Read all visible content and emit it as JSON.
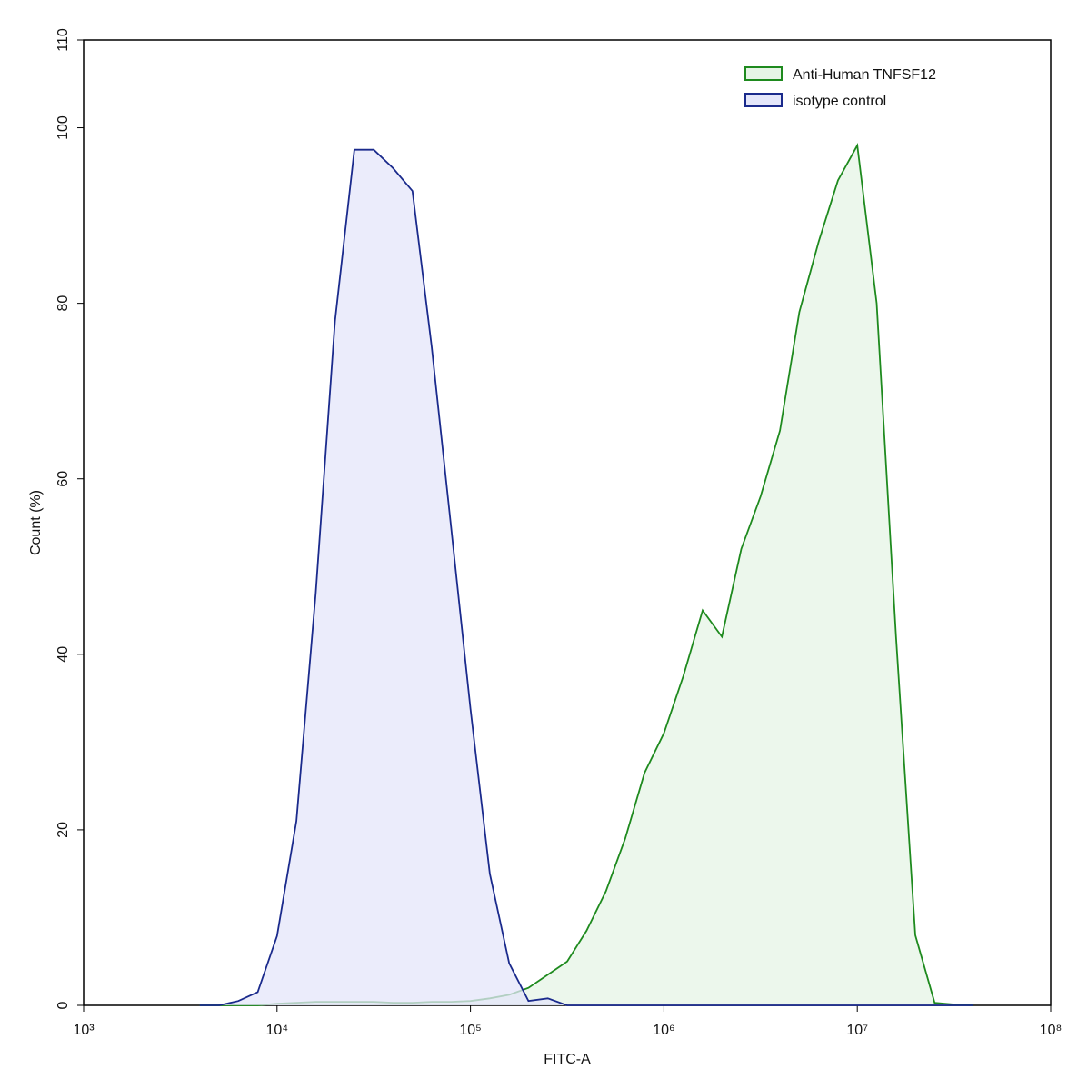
{
  "chart_data": {
    "type": "histogram-overlay",
    "x_label": "FITC-A",
    "y_label": "Count (%)",
    "x_log": true,
    "xlim": [
      1000,
      100000000
    ],
    "xticks": [
      {
        "value": 1000,
        "label": "10³"
      },
      {
        "value": 10000,
        "label": "10⁴"
      },
      {
        "value": 100000,
        "label": "10⁵"
      },
      {
        "value": 1000000,
        "label": "10⁶"
      },
      {
        "value": 10000000,
        "label": "10⁷"
      },
      {
        "value": 100000000,
        "label": "10⁸"
      }
    ],
    "ylim": [
      0,
      110
    ],
    "yticks": [
      0,
      20,
      40,
      60,
      80,
      100,
      110
    ],
    "legend": "upper right",
    "x": [
      3981,
      5012,
      6310,
      7943,
      10000,
      12589,
      15849,
      19953,
      25119,
      31623,
      39811,
      50119,
      63096,
      79433,
      100000,
      125893,
      158489,
      199526,
      251189,
      316228,
      398107,
      501187,
      630957,
      794328,
      1000000,
      1258925,
      1584893,
      1995262,
      2511886,
      3162278,
      3981072,
      5011872,
      6309573,
      7943282,
      10000000,
      12589254,
      15848932,
      19952623,
      25118864,
      31622777,
      39810717
    ],
    "series": [
      {
        "name": "Anti-Human TNFSF12",
        "color": "#1e8a1e",
        "fill": "#e6f4e6",
        "values": [
          0,
          0,
          0,
          0,
          0.2,
          0.3,
          0.4,
          0.4,
          0.4,
          0.4,
          0.3,
          0.3,
          0.4,
          0.4,
          0.5,
          0.8,
          1.2,
          2,
          3.5,
          5,
          8.5,
          13,
          19,
          26.5,
          31,
          37.5,
          45,
          42,
          52,
          58,
          65.5,
          79,
          87,
          94,
          98,
          80,
          42,
          8,
          0.3,
          0.1,
          0
        ]
      },
      {
        "name": "isotype control",
        "color": "#1a2a8c",
        "fill": "#e4e6fa",
        "values": [
          0,
          0,
          0.5,
          1.5,
          7.9,
          21,
          47,
          78,
          97.5,
          97.5,
          95.4,
          92.8,
          75,
          54.5,
          33.8,
          15,
          4.8,
          0.5,
          0.8,
          0,
          0,
          0,
          0,
          0,
          0,
          0,
          0,
          0,
          0,
          0,
          0,
          0,
          0,
          0,
          0,
          0,
          0,
          0,
          0,
          0,
          0
        ]
      }
    ]
  }
}
